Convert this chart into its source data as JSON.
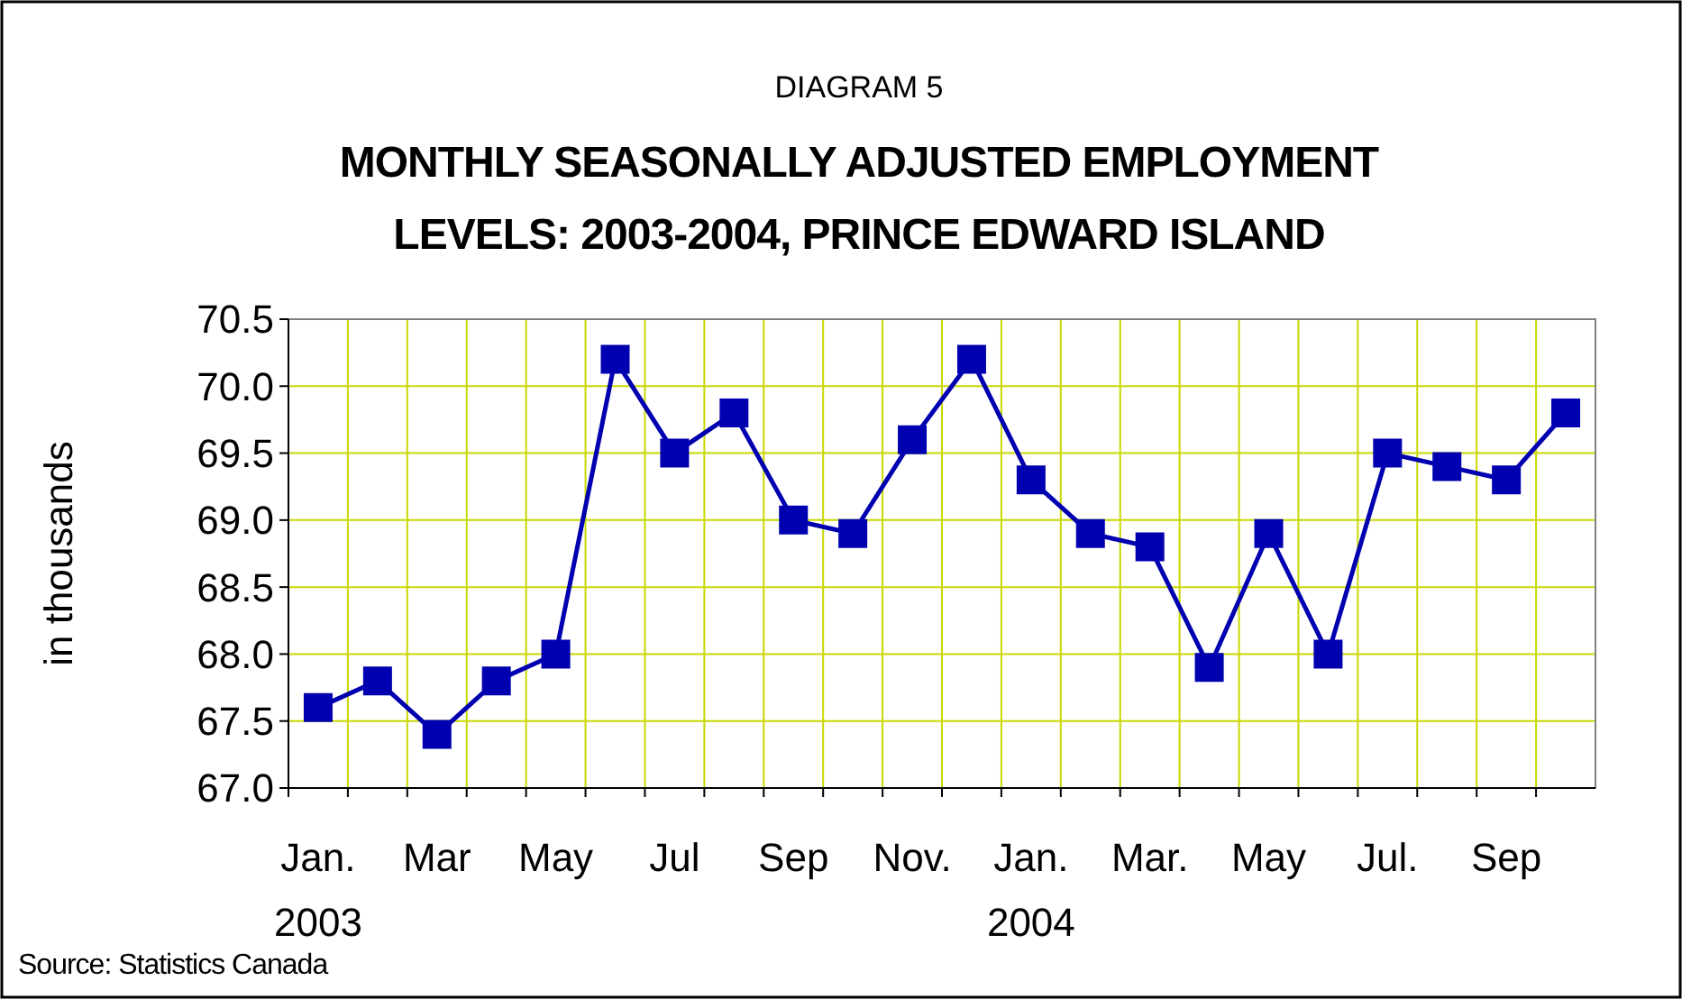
{
  "chart_data": {
    "type": "line",
    "subtitle": "DIAGRAM 5",
    "title": "MONTHLY SEASONALLY ADJUSTED EMPLOYMENT\nLEVELS: 2003-2004, PRINCE EDWARD ISLAND",
    "ylabel": "in thousands",
    "categories": [
      "Jan.\n2003",
      null,
      "Mar",
      null,
      "May",
      null,
      "Jul",
      null,
      "Sep",
      null,
      "Nov.",
      null,
      "Jan.\n2004",
      null,
      "Mar.",
      null,
      "May",
      null,
      "Jul.",
      null,
      "Sep",
      null
    ],
    "series": [
      {
        "color": "#0000b0",
        "values": [
          67.6,
          67.8,
          67.4,
          67.8,
          68.0,
          70.2,
          69.5,
          69.8,
          69.0,
          68.9,
          69.6,
          70.2,
          69.3,
          68.9,
          68.8,
          67.9,
          68.9,
          68.0,
          69.5,
          69.4,
          69.3,
          69.8
        ]
      }
    ],
    "ylim": [
      67.0,
      70.5
    ],
    "yticks": [
      {
        "value": 67,
        "label": "67.0"
      },
      67.5,
      {
        "value": 68,
        "label": "68.0"
      },
      68.5,
      {
        "value": 69,
        "label": "69.0"
      },
      69.5,
      {
        "value": 70,
        "label": "70.0"
      },
      70.5
    ],
    "grid": true,
    "marker": "square",
    "line_style": "solid",
    "annotations": [
      "Source: Statistics Canada"
    ]
  }
}
